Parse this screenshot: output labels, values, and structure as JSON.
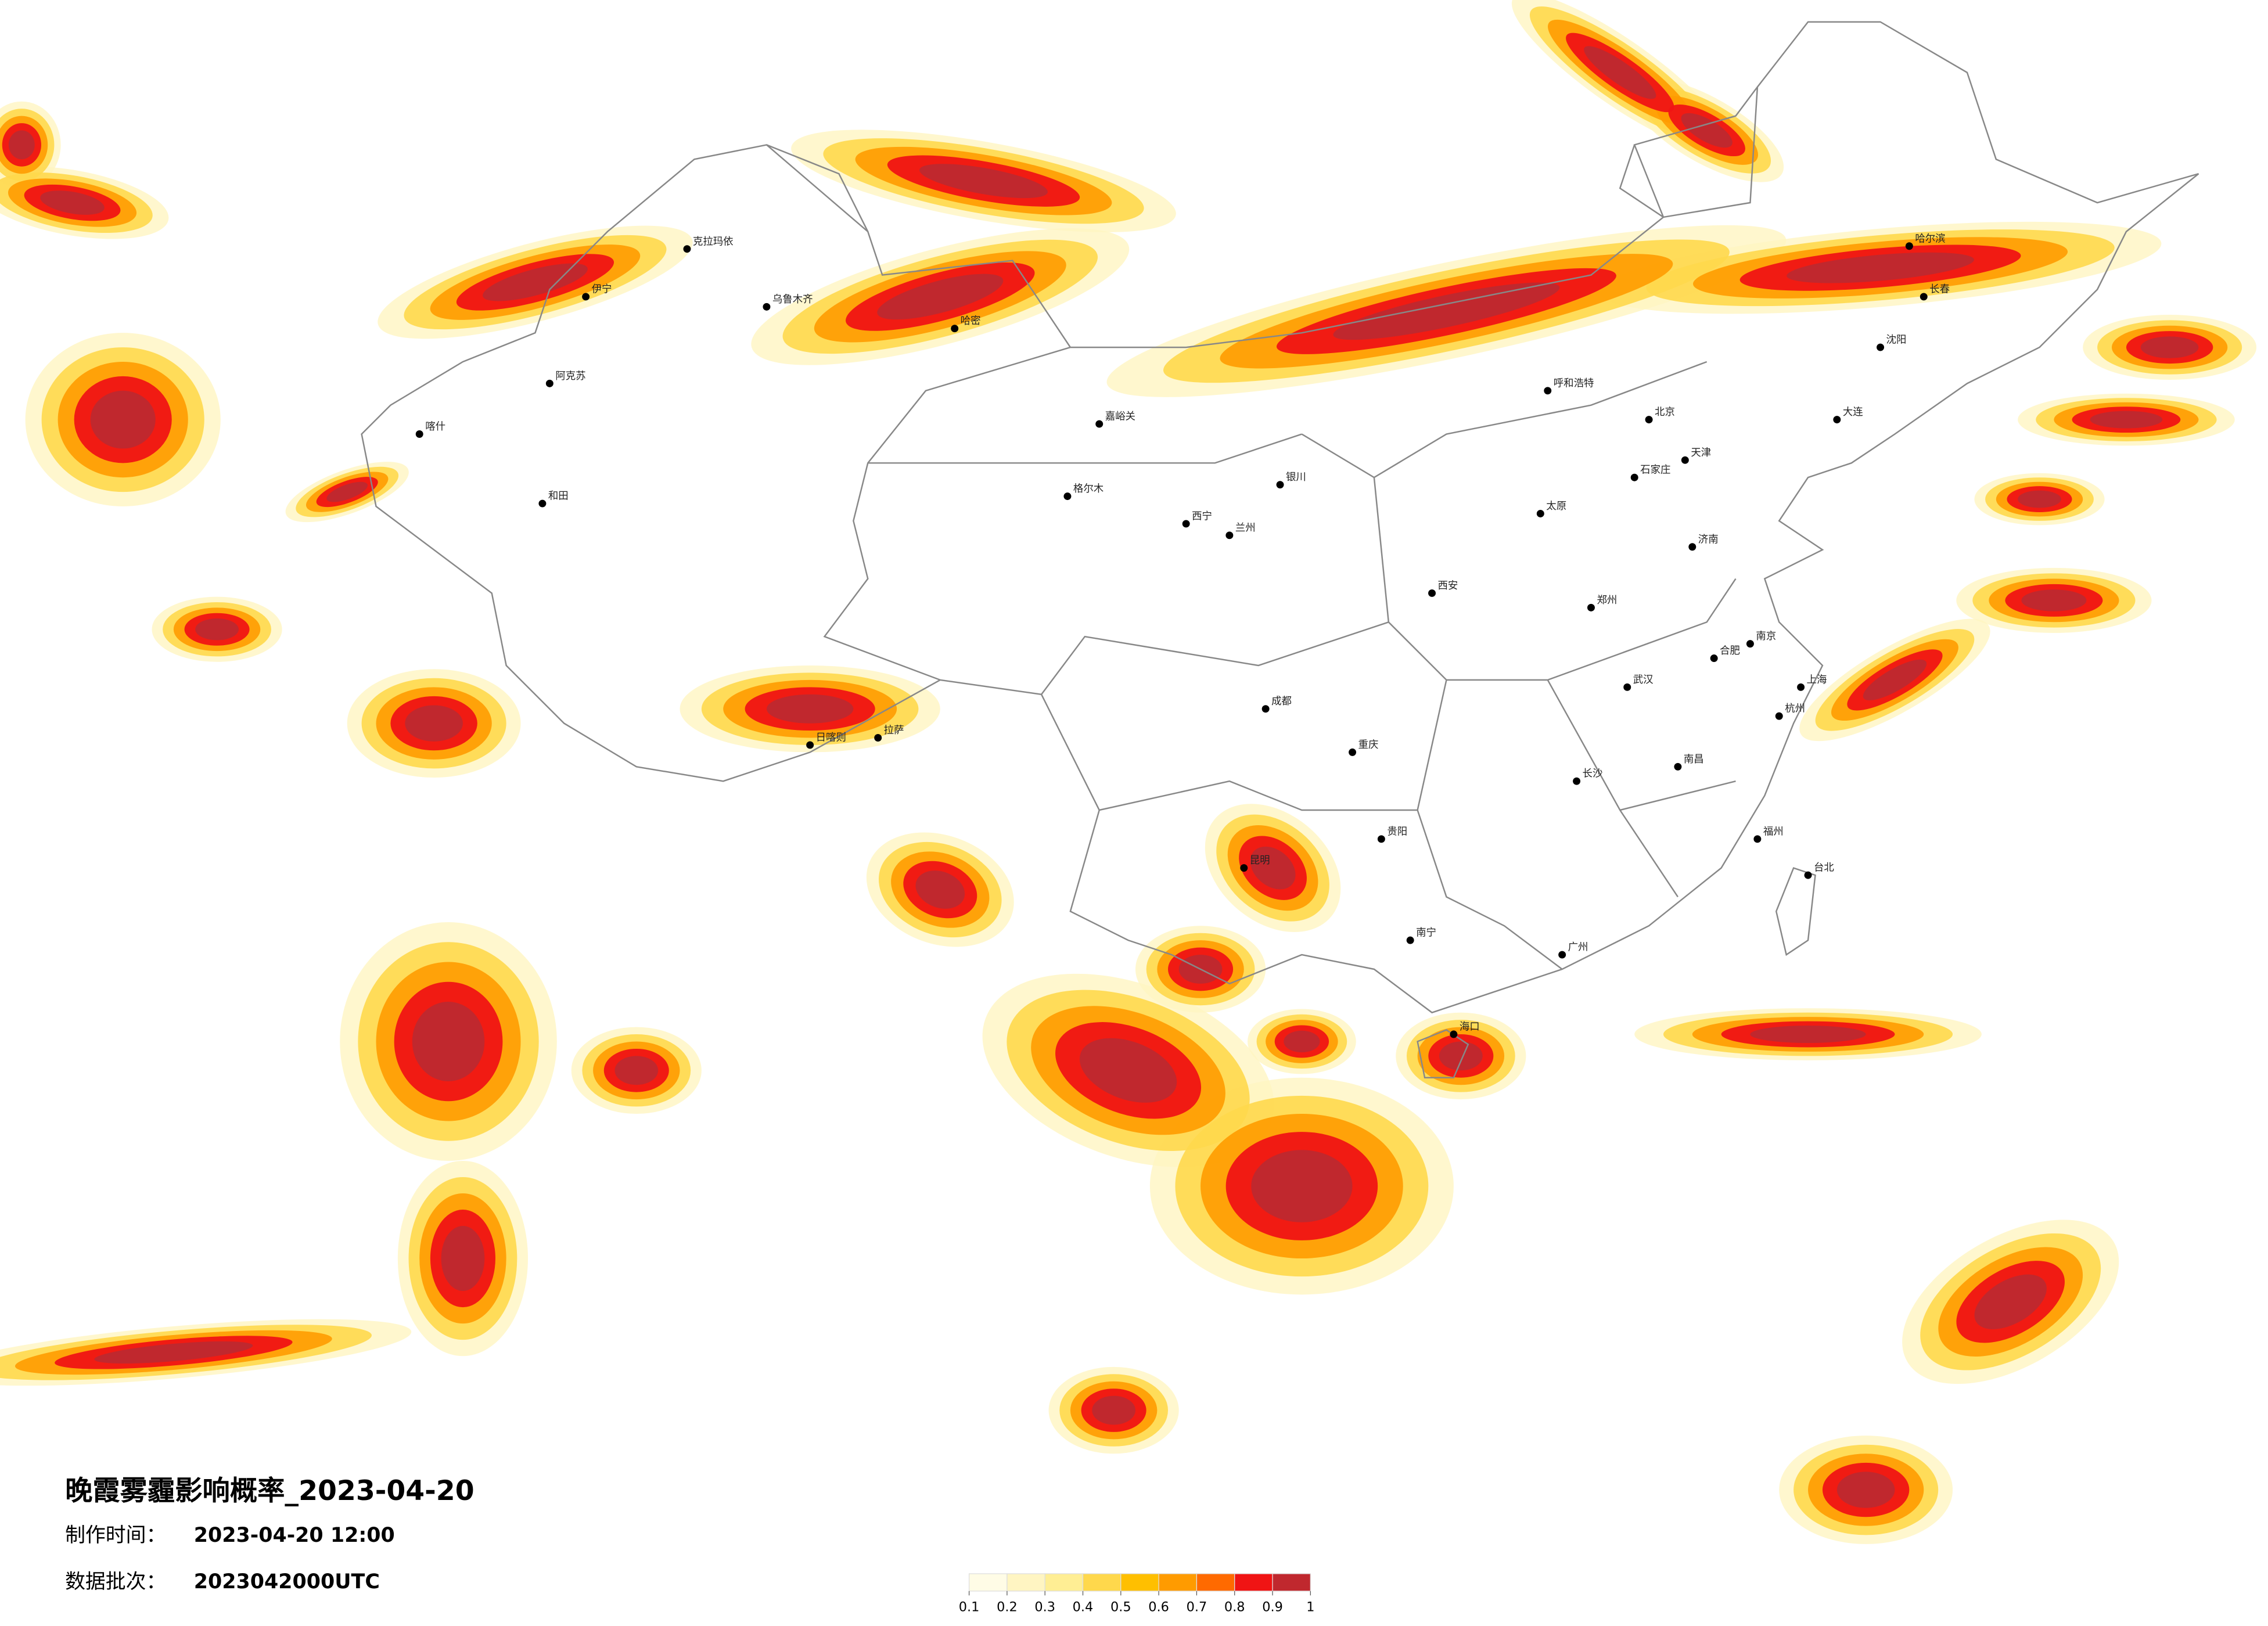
{
  "title": "晚霞雾霾影响概率_2023-04-20",
  "made_time": {
    "label": "制作时间：",
    "value": "2023-04-20 12:00"
  },
  "batch": {
    "label": "数据批次：",
    "value": "2023042000UTC"
  },
  "colorbar": {
    "ticks": [
      0.1,
      0.2,
      0.3,
      0.4,
      0.5,
      0.6,
      0.7,
      0.8,
      0.9,
      1
    ],
    "colors": [
      "#fffce6",
      "#fff5c2",
      "#ffee94",
      "#ffd84c",
      "#ffbf00",
      "#ff9b00",
      "#ff6a00",
      "#f01414",
      "#c0282e"
    ]
  },
  "cities": [
    "克拉玛依",
    "伊宁",
    "乌鲁木齐",
    "哈密",
    "阿克苏",
    "喀什",
    "和田",
    "格尔木",
    "日喀则",
    "拉萨",
    "嘉峪关",
    "兰州",
    "西宁",
    "银川",
    "呼和浩特",
    "北京",
    "天津",
    "石家庄",
    "太原",
    "济南",
    "郑州",
    "西安",
    "成都",
    "重庆",
    "武汉",
    "合肥",
    "南京",
    "上海",
    "杭州",
    "长沙",
    "南昌",
    "福州",
    "台北",
    "贵阳",
    "昆明",
    "南宁",
    "广州",
    "海口",
    "哈尔滨",
    "长春",
    "沈阳",
    "大连"
  ]
}
